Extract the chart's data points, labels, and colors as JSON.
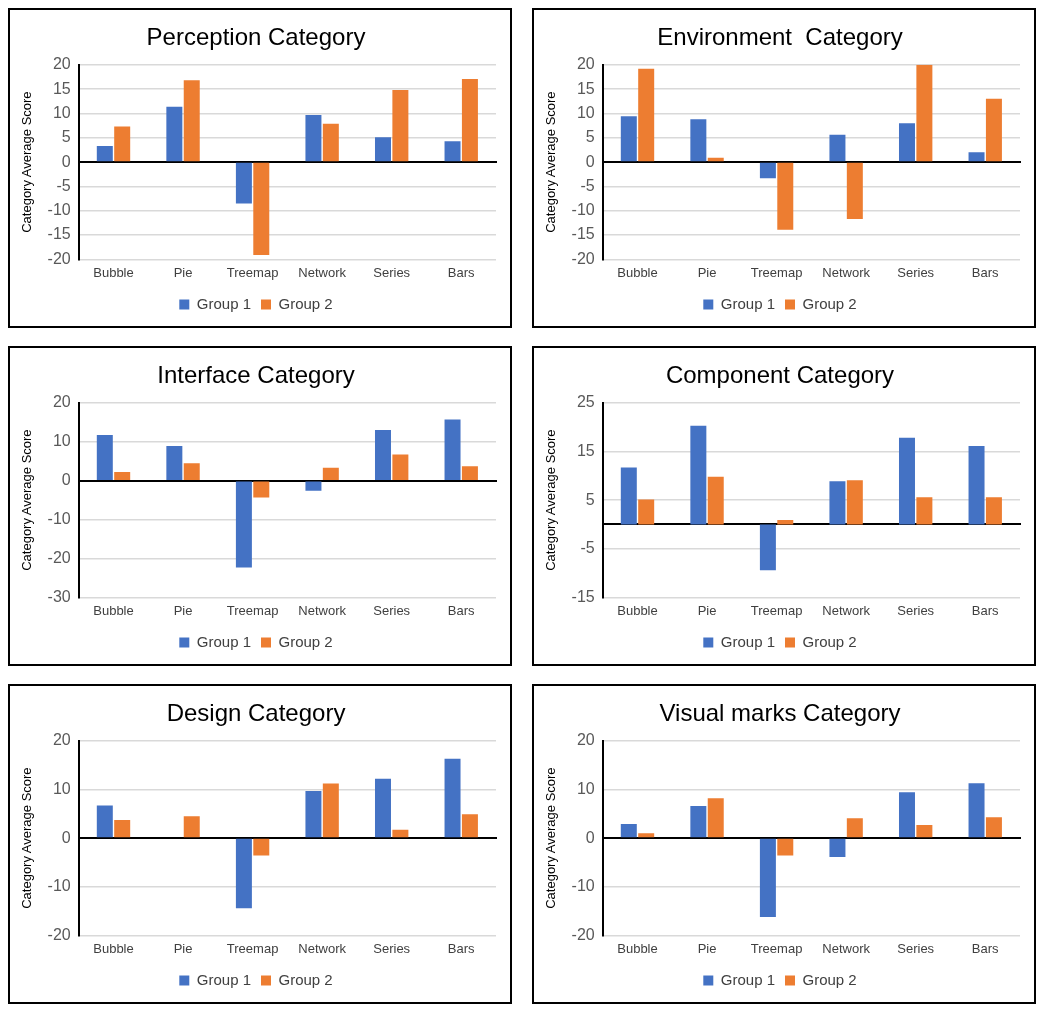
{
  "chart_data": [
    {
      "type": "bar",
      "title": "Perception Category",
      "ylabel": "Category Average Score",
      "categories": [
        "Bubble",
        "Pie",
        "Treemap",
        "Network",
        "Series",
        "Bars"
      ],
      "series": [
        {
          "name": "Group 1",
          "color": "#4472c4",
          "values": [
            3.3,
            11.4,
            -8.5,
            9.7,
            5.1,
            4.3
          ]
        },
        {
          "name": "Group 2",
          "color": "#ed7d31",
          "values": [
            7.3,
            16.8,
            -19.1,
            7.9,
            14.8,
            17.1
          ]
        }
      ],
      "ylim": [
        -20,
        20
      ],
      "yticks": [
        -20,
        -15,
        -10,
        -5,
        0,
        5,
        10,
        15,
        20
      ],
      "grid": "y",
      "legend": "bottom"
    },
    {
      "type": "bar",
      "title": "Environment  Category",
      "ylabel": "Category Average Score",
      "categories": [
        "Bubble",
        "Pie",
        "Treemap",
        "Network",
        "Series",
        "Bars"
      ],
      "series": [
        {
          "name": "Group 1",
          "color": "#4472c4",
          "values": [
            9.4,
            8.8,
            -3.3,
            5.6,
            8.0,
            2.0
          ]
        },
        {
          "name": "Group 2",
          "color": "#ed7d31",
          "values": [
            19.2,
            0.9,
            -13.9,
            -11.7,
            20,
            13.0
          ]
        }
      ],
      "ylim": [
        -20,
        20
      ],
      "yticks": [
        -20,
        -15,
        -10,
        -5,
        0,
        5,
        10,
        15,
        20
      ],
      "grid": "y",
      "legend": "bottom"
    },
    {
      "type": "bar",
      "title": "Interface Category",
      "ylabel": "Category Average Score",
      "categories": [
        "Bubble",
        "Pie",
        "Treemap",
        "Network",
        "Series",
        "Bars"
      ],
      "series": [
        {
          "name": "Group 1",
          "color": "#4472c4",
          "values": [
            11.7,
            8.9,
            -22.3,
            -2.6,
            13.0,
            15.7
          ]
        },
        {
          "name": "Group 2",
          "color": "#ed7d31",
          "values": [
            2.2,
            4.5,
            -4.3,
            3.3,
            6.7,
            3.7
          ]
        }
      ],
      "ylim": [
        -30,
        20
      ],
      "yticks": [
        -30,
        -20,
        -10,
        0,
        10,
        20
      ],
      "grid": "y",
      "legend": "bottom"
    },
    {
      "type": "bar",
      "title": "Component Category",
      "ylabel": "Category Average Score",
      "categories": [
        "Bubble",
        "Pie",
        "Treemap",
        "Network",
        "Series",
        "Bars"
      ],
      "series": [
        {
          "name": "Group 1",
          "color": "#4472c4",
          "values": [
            11.7,
            20.3,
            -9.4,
            8.9,
            17.8,
            16.1
          ]
        },
        {
          "name": "Group 2",
          "color": "#ed7d31",
          "values": [
            5.1,
            9.8,
            0.9,
            9.1,
            5.6,
            5.6
          ]
        }
      ],
      "ylim": [
        -15,
        25
      ],
      "yticks": [
        -15,
        -5,
        5,
        15,
        25
      ],
      "grid": "y",
      "legend": "bottom"
    },
    {
      "type": "bar",
      "title": "Design Category",
      "ylabel": "Category Average Score",
      "categories": [
        "Bubble",
        "Pie",
        "Treemap",
        "Network",
        "Series",
        "Bars"
      ],
      "series": [
        {
          "name": "Group 1",
          "color": "#4472c4",
          "values": [
            6.7,
            0,
            -14.4,
            9.7,
            12.2,
            16.3
          ]
        },
        {
          "name": "Group 2",
          "color": "#ed7d31",
          "values": [
            3.7,
            4.5,
            -3.6,
            11.2,
            1.7,
            4.9
          ]
        }
      ],
      "ylim": [
        -20,
        20
      ],
      "yticks": [
        -20,
        -10,
        0,
        10,
        20
      ],
      "grid": "y",
      "legend": "bottom"
    },
    {
      "type": "bar",
      "title": "Visual marks Category",
      "ylabel": "Category Average Score",
      "categories": [
        "Bubble",
        "Pie",
        "Treemap",
        "Network",
        "Series",
        "Bars"
      ],
      "series": [
        {
          "name": "Group 1",
          "color": "#4472c4",
          "values": [
            2.9,
            6.6,
            -16.2,
            -3.9,
            9.4,
            11.3
          ]
        },
        {
          "name": "Group 2",
          "color": "#ed7d31",
          "values": [
            1.0,
            8.2,
            -3.6,
            4.1,
            2.7,
            4.3
          ]
        }
      ],
      "ylim": [
        -20,
        20
      ],
      "yticks": [
        -20,
        -10,
        0,
        10,
        20
      ],
      "grid": "y",
      "legend": "bottom"
    }
  ]
}
